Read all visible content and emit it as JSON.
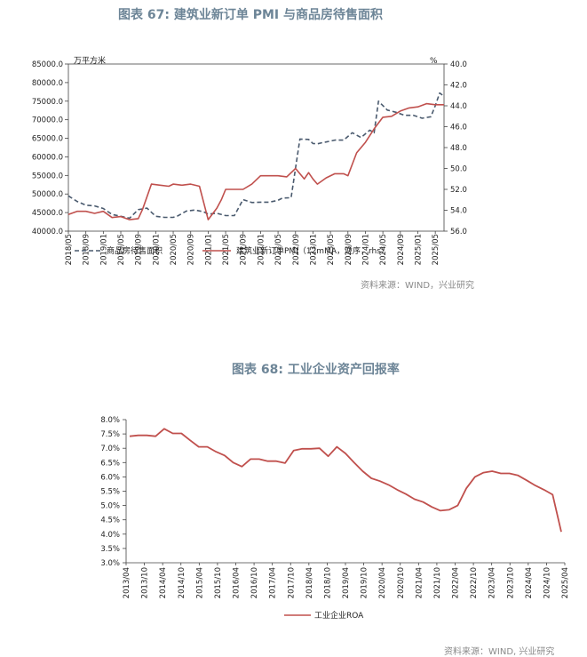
{
  "chart_data": [
    {
      "type": "line",
      "title": "图表 67: 建筑业新订单 PMI 与商品房待售面积",
      "source": "资料来源：WIND，兴业研究",
      "y_left_unit": "万平方米",
      "y_right_unit": "%",
      "y_left_ticks": [
        "85000.0",
        "80000.0",
        "75000.0",
        "70000.0",
        "65000.0",
        "60000.0",
        "55000.0",
        "50000.0",
        "45000.0",
        "40000.0"
      ],
      "y_right_ticks": [
        "40.0",
        "42.0",
        "44.0",
        "46.0",
        "48.0",
        "50.0",
        "52.0",
        "54.0",
        "56.0"
      ],
      "ylim_left": [
        40000,
        85000
      ],
      "ylim_right_inverted": [
        40,
        56
      ],
      "x_ticks": [
        "2018/05",
        "2018/09",
        "2019/01",
        "2019/05",
        "2019/09",
        "2020/01",
        "2020/05",
        "2020/09",
        "2021/01",
        "2021/05",
        "2021/09",
        "2022/01",
        "2022/05",
        "2022/09",
        "2023/01",
        "2023/05",
        "2023/09",
        "2024/01",
        "2024/05",
        "2024/09",
        "2025/01",
        "2025/05"
      ],
      "series": [
        {
          "name": "商品房待售面积",
          "axis": "left",
          "color": "#4a5a6e",
          "dash": true,
          "x": [
            0,
            2,
            4,
            6,
            8,
            10,
            12,
            14,
            16,
            18,
            20,
            22,
            24,
            25,
            27,
            29,
            31,
            32,
            34,
            36,
            38,
            40,
            42,
            44,
            46,
            48,
            49,
            51,
            53,
            55,
            56,
            57,
            58,
            59,
            61,
            63,
            65,
            67,
            69,
            70,
            71,
            73,
            75,
            77,
            79,
            81,
            83,
            84,
            85,
            86
          ],
          "values": [
            49500,
            48000,
            47000,
            46800,
            46100,
            44500,
            44000,
            43500,
            45800,
            46200,
            44000,
            43700,
            43700,
            44100,
            45400,
            45700,
            45200,
            44600,
            44800,
            44200,
            44200,
            48500,
            47700,
            47800,
            47800,
            48300,
            48900,
            49000,
            64800,
            64700,
            63600,
            63500,
            63800,
            64000,
            64500,
            64500,
            66500,
            65200,
            67200,
            66500,
            75000,
            72600,
            72000,
            71200,
            71200,
            70400,
            70800,
            73800,
            77200,
            76300
          ]
        },
        {
          "name": "建筑业新订单PMI（12mMA，逆序，rhs）",
          "axis": "right",
          "color": "#c0504d",
          "dash": false,
          "x": [
            0,
            2,
            4,
            6,
            8,
            10,
            12,
            14,
            16,
            17,
            19,
            21,
            23,
            24,
            26,
            28,
            30,
            32,
            34,
            35,
            36,
            38,
            40,
            42,
            44,
            46,
            48,
            50,
            52,
            54,
            55,
            56,
            57,
            59,
            61,
            63,
            64,
            66,
            68,
            70,
            72,
            74,
            76,
            78,
            80,
            82,
            84,
            86
          ],
          "values": [
            54.4,
            54.1,
            54.1,
            54.3,
            54.1,
            54.7,
            54.6,
            54.9,
            54.8,
            53.9,
            51.5,
            51.6,
            51.7,
            51.5,
            51.6,
            51.5,
            51.7,
            54.9,
            53.8,
            53.0,
            52.0,
            52.0,
            52.0,
            51.5,
            50.7,
            50.7,
            50.7,
            50.8,
            50.0,
            51.0,
            50.4,
            51.0,
            51.5,
            50.9,
            50.5,
            50.5,
            50.7,
            48.5,
            47.5,
            46.2,
            45.1,
            45.0,
            44.5,
            44.2,
            44.1,
            43.8,
            43.9,
            43.9
          ]
        }
      ]
    },
    {
      "type": "line",
      "title": "图表 68: 工业企业资产回报率",
      "source": "资料来源：WIND, 兴业研究",
      "y_ticks": [
        "8.0%",
        "7.5%",
        "7.0%",
        "6.5%",
        "6.0%",
        "5.5%",
        "5.0%",
        "4.5%",
        "4.0%",
        "3.5%",
        "3.0%"
      ],
      "ylim": [
        3.0,
        8.0
      ],
      "x_ticks": [
        "2013/04",
        "2013/10",
        "2014/04",
        "2014/10",
        "2015/04",
        "2015/10",
        "2016/04",
        "2016/10",
        "2017/04",
        "2017/10",
        "2018/04",
        "2018/10",
        "2019/04",
        "2019/10",
        "2020/04",
        "2020/10",
        "2021/04",
        "2021/10",
        "2022/04",
        "2022/10",
        "2023/04",
        "2023/10",
        "2024/04",
        "2024/10",
        "2025/04"
      ],
      "series": [
        {
          "name": "工业企业ROA",
          "color": "#c0504d",
          "x": [
            0,
            1,
            2,
            3,
            4,
            5,
            6,
            7,
            8,
            9,
            10,
            11,
            12,
            13,
            14,
            15,
            16,
            17,
            18,
            19,
            20,
            21,
            22,
            23,
            24,
            25,
            26,
            27,
            28,
            29,
            30,
            31,
            32,
            33,
            34,
            35,
            36,
            37,
            38,
            39,
            40,
            41,
            42,
            43,
            44,
            45,
            46,
            47,
            48,
            49,
            50
          ],
          "values": [
            7.42,
            7.45,
            7.45,
            7.42,
            7.68,
            7.52,
            7.52,
            7.28,
            7.05,
            7.05,
            6.88,
            6.75,
            6.5,
            6.36,
            6.62,
            6.62,
            6.55,
            6.55,
            6.48,
            6.92,
            6.98,
            6.98,
            7.0,
            6.72,
            7.05,
            6.82,
            6.5,
            6.2,
            5.95,
            5.85,
            5.72,
            5.55,
            5.4,
            5.22,
            5.12,
            4.95,
            4.82,
            4.85,
            5.0,
            5.6,
            6.0,
            6.15,
            6.2,
            6.12,
            6.12,
            6.05,
            5.88,
            5.7,
            5.55,
            5.38,
            4.08
          ]
        }
      ]
    }
  ]
}
